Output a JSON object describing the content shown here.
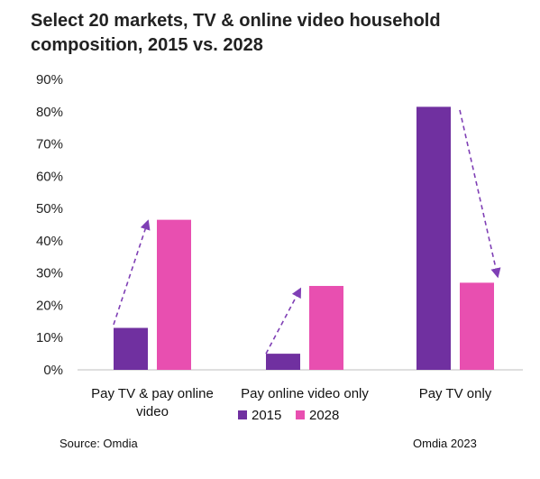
{
  "title": "Select 20 markets, TV & online video household composition,  2015 vs. 2028",
  "source": "Source: Omdia",
  "credit": "Omdia 2023",
  "colors": {
    "s2015": "#7030a0",
    "s2028": "#e84fb0",
    "arrow": "#7f3fb5"
  },
  "chart_data": {
    "type": "bar",
    "categories": [
      [
        "Pay TV & pay online",
        "video"
      ],
      [
        "Pay online video only"
      ],
      [
        "Pay TV only"
      ]
    ],
    "series": [
      {
        "name": "2015",
        "values": [
          13,
          5,
          81.5
        ]
      },
      {
        "name": "2028",
        "values": [
          46.5,
          26,
          27
        ]
      }
    ],
    "ylim": [
      0,
      90
    ],
    "yticks": [
      0,
      10,
      20,
      30,
      40,
      50,
      60,
      70,
      80,
      90
    ],
    "ytick_labels": [
      "0%",
      "10%",
      "20%",
      "30%",
      "40%",
      "50%",
      "60%",
      "70%",
      "80%",
      "90%"
    ],
    "legend": "bottom",
    "grid": false,
    "annotations": [
      {
        "type": "dashed-arrow",
        "category": 0,
        "from": 14,
        "to": 46
      },
      {
        "type": "dashed-arrow",
        "category": 1,
        "from": 5,
        "to": 25
      },
      {
        "type": "dashed-arrow",
        "category": 2,
        "from": 80.5,
        "to": 29
      }
    ]
  }
}
